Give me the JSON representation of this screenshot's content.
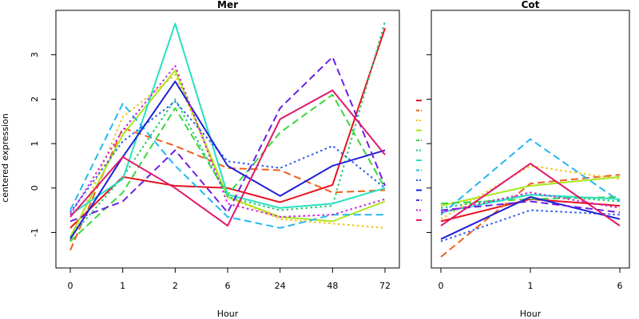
{
  "chart_data": [
    {
      "type": "line",
      "title": "Mer",
      "xlabel": "Hour",
      "ylabel": "centered expression",
      "categories": [
        "0",
        "1",
        "2",
        "6",
        "24",
        "48",
        "72"
      ],
      "ylim": [
        -1.8,
        4.0
      ],
      "yticks": [
        -1,
        0,
        1,
        2,
        3
      ],
      "grid": false,
      "series": [
        {
          "color": "#e8101c",
          "dash": "solid",
          "values": [
            -0.9,
            0.25,
            0.05,
            0.0,
            -0.32,
            0.07,
            3.6
          ]
        },
        {
          "color": "#f05f1a",
          "dash": "dashed",
          "values": [
            -1.4,
            1.35,
            0.95,
            0.45,
            0.4,
            -0.1,
            -0.05
          ]
        },
        {
          "color": "#f2c20e",
          "dash": "dotted",
          "values": [
            -1.2,
            1.6,
            2.55,
            -0.2,
            -0.7,
            -0.8,
            -0.9
          ]
        },
        {
          "color": "#a8e61d",
          "dash": "solid",
          "values": [
            -1.1,
            1.2,
            2.65,
            -0.2,
            -0.65,
            -0.75,
            -0.3
          ]
        },
        {
          "color": "#3cd63a",
          "dash": "dashed",
          "values": [
            -1.2,
            -0.1,
            1.8,
            -0.15,
            1.25,
            2.1,
            0.0
          ]
        },
        {
          "color": "#1fc86b",
          "dash": "dotted",
          "values": [
            -1.1,
            0.25,
            2.0,
            -0.2,
            -0.5,
            -0.4,
            3.75
          ]
        },
        {
          "color": "#26e0c0",
          "dash": "solid",
          "values": [
            -0.6,
            0.2,
            3.7,
            -0.15,
            -0.45,
            -0.35,
            0.0
          ]
        },
        {
          "color": "#22b8f0",
          "dash": "dashed",
          "values": [
            -0.5,
            1.9,
            0.5,
            -0.65,
            -0.9,
            -0.6,
            -0.6
          ]
        },
        {
          "color": "#2a5af2",
          "dash": "dotted",
          "values": [
            -0.55,
            1.05,
            1.95,
            0.6,
            0.45,
            0.95,
            0.0
          ]
        },
        {
          "color": "#2020d8",
          "dash": "solid",
          "values": [
            -1.15,
            0.7,
            2.4,
            0.5,
            -0.18,
            0.5,
            0.85
          ]
        },
        {
          "color": "#6a20e6",
          "dash": "dashed",
          "values": [
            -0.75,
            -0.3,
            0.85,
            -0.55,
            1.8,
            2.95,
            0.05
          ]
        },
        {
          "color": "#cc20e0",
          "dash": "dotted",
          "values": [
            -0.6,
            1.3,
            2.75,
            -0.35,
            -0.65,
            -0.6,
            -0.25
          ]
        },
        {
          "color": "#e0186a",
          "dash": "solid",
          "values": [
            -0.65,
            0.7,
            0.0,
            -0.85,
            1.55,
            2.2,
            0.75
          ]
        }
      ]
    },
    {
      "type": "line",
      "title": "Cot",
      "xlabel": "Hour",
      "ylabel": "",
      "categories": [
        "0",
        "1",
        "6"
      ],
      "ylim": [
        -1.8,
        4.0
      ],
      "yticks": [
        -1,
        0,
        1,
        2,
        3
      ],
      "grid": false,
      "legend_placement": "left",
      "series": [
        {
          "color": "#e8101c",
          "dash": "solid",
          "values": [
            -0.75,
            -0.25,
            -0.4
          ]
        },
        {
          "color": "#f05f1a",
          "dash": "dashed",
          "values": [
            -1.55,
            0.1,
            0.3
          ]
        },
        {
          "color": "#f2c20e",
          "dash": "dotted",
          "values": [
            -0.7,
            0.5,
            0.2
          ]
        },
        {
          "color": "#a8e61d",
          "dash": "solid",
          "values": [
            -0.4,
            0.05,
            0.25
          ]
        },
        {
          "color": "#3cd63a",
          "dash": "dashed",
          "values": [
            -0.35,
            -0.25,
            -0.2
          ]
        },
        {
          "color": "#1fc86b",
          "dash": "dotted",
          "values": [
            -0.45,
            -0.15,
            -0.3
          ]
        },
        {
          "color": "#26e0c0",
          "dash": "solid",
          "values": [
            -0.55,
            -0.15,
            -0.25
          ]
        },
        {
          "color": "#22b8f0",
          "dash": "dashed",
          "values": [
            -0.6,
            1.1,
            -0.3
          ]
        },
        {
          "color": "#2a5af2",
          "dash": "dotted",
          "values": [
            -1.2,
            -0.5,
            -0.6
          ]
        },
        {
          "color": "#2020d8",
          "dash": "solid",
          "values": [
            -1.15,
            -0.2,
            -0.7
          ]
        },
        {
          "color": "#6a20e6",
          "dash": "dashed",
          "values": [
            -0.5,
            -0.3,
            -0.55
          ]
        },
        {
          "color": "#cc20e0",
          "dash": "dotted",
          "values": [
            -0.55,
            -0.1,
            -0.45
          ]
        },
        {
          "color": "#e0186a",
          "dash": "solid",
          "values": [
            -0.85,
            0.55,
            -0.85
          ]
        }
      ]
    }
  ]
}
